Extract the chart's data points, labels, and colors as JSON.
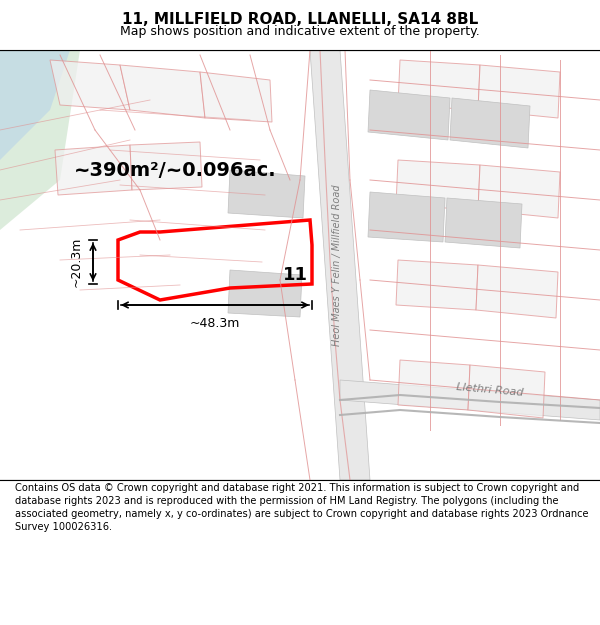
{
  "title": "11, MILLFIELD ROAD, LLANELLI, SA14 8BL",
  "subtitle": "Map shows position and indicative extent of the property.",
  "footer": "Contains OS data © Crown copyright and database right 2021. This information is subject to Crown copyright and database rights 2023 and is reproduced with the permission of HM Land Registry. The polygons (including the associated geometry, namely x, y co-ordinates) are subject to Crown copyright and database rights 2023 Ordnance Survey 100026316.",
  "area_label": "~390m²/~0.096ac.",
  "width_label": "~48.3m",
  "height_label": "~20.3m",
  "plot_number": "11",
  "road_label": "Heol Maes Y Felin / Millfield Road",
  "road_label2": "Llethri Road",
  "bg_color": "#f5f5f5",
  "map_bg": "#ffffff",
  "red_poly_color": "#ff0000",
  "light_red": "#f0a0a0",
  "light_gray": "#d8d8d8",
  "light_green": "#c8dcc8",
  "light_blue": "#c8d8e8"
}
